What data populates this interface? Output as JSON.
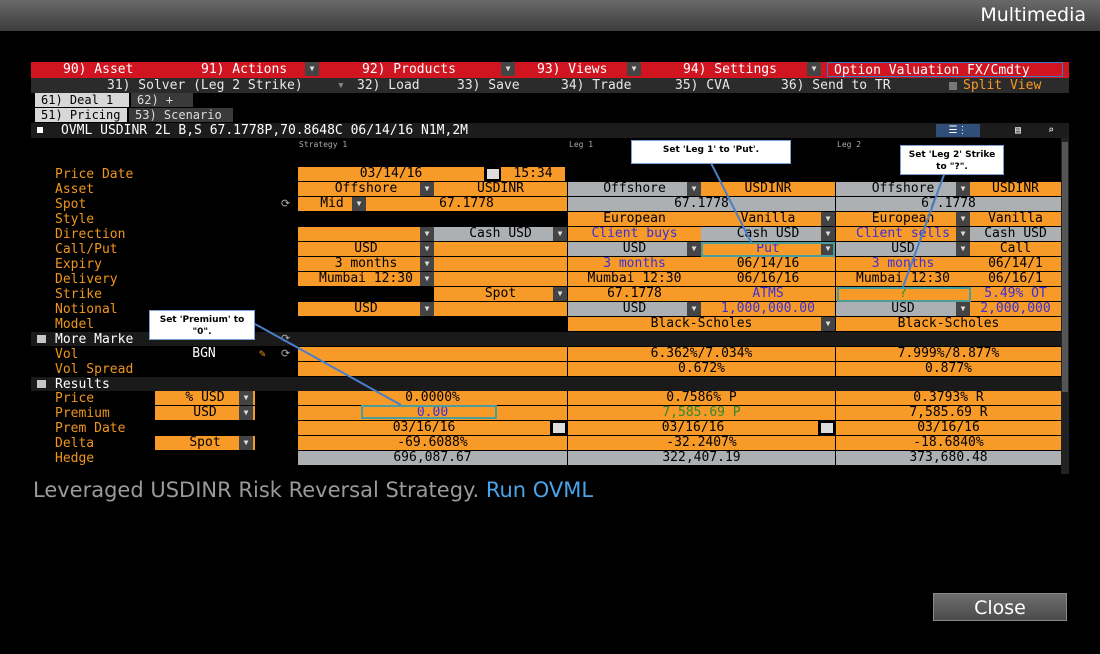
{
  "window": {
    "title": "Multimedia"
  },
  "menubar": {
    "items": [
      {
        "label": "90) Asset"
      },
      {
        "label": "91) Actions"
      },
      {
        "label": "92) Products"
      },
      {
        "label": "93) Views"
      },
      {
        "label": "94) Settings"
      }
    ],
    "function_title": "Option Valuation FX/Cmdty"
  },
  "toolbar": {
    "solver": "31) Solver (Leg 2 Strike)",
    "load": "32) Load",
    "save": "33) Save",
    "trade": "34) Trade",
    "cva": "35) CVA",
    "send": "36) Send to TR",
    "split_view": "Split View"
  },
  "deal_tabs": [
    {
      "label": "61) Deal 1"
    },
    {
      "label": "62) +"
    }
  ],
  "view_tabs": [
    {
      "label": "51) Pricing"
    },
    {
      "label": "53) Scenario"
    }
  ],
  "header": {
    "deal_string": "OVML USDINR 2L B,S 67.1778P,70.8648C 06/14/16 N1M,2M"
  },
  "subheader": {
    "strategy": "Strategy 1",
    "leg1": "Leg 1",
    "leg2": "Leg 2"
  },
  "labels": {
    "price_date": "Price Date",
    "asset": "Asset",
    "spot": "Spot",
    "style": "Style",
    "direction": "Direction",
    "call_put": "Call/Put",
    "expiry": "Expiry",
    "delivery": "Delivery",
    "strike": "Strike",
    "notional": "Notional",
    "model": "Model",
    "more_market": "More Marke",
    "vol": "Vol",
    "vol_spread": "Vol Spread",
    "results": "Results",
    "price": "Price",
    "premium": "Premium",
    "prem_date": "Prem Date",
    "delta": "Delta",
    "hedge": "Hedge"
  },
  "strategy": {
    "price_date": "03/14/16",
    "time": "15:34",
    "asset_type": "Offshore",
    "asset_pair": "USDINR",
    "spot_mode": "Mid",
    "spot": "67.1778",
    "direction": "Cash USD",
    "call_put": "USD",
    "expiry": "3 months",
    "delivery": "Mumbai 12:30",
    "strike_ref": "Spot",
    "notional_ccy": "USD",
    "vol_source": "BGN",
    "price_unit": "% USD",
    "price": "0.0000%",
    "premium_ccy": "USD",
    "premium": "0.00",
    "prem_date": "03/16/16",
    "delta_type": "Spot",
    "delta": "-69.6088%",
    "hedge": "696,087.67"
  },
  "leg1": {
    "asset_type": "Offshore",
    "asset_pair": "USDINR",
    "spot": "67.1778",
    "style": "European",
    "type": "Vanilla",
    "direction": "Client buys",
    "settle": "Cash USD",
    "call_put_ccy": "USD",
    "call_put": "Put",
    "expiry": "3 months",
    "expiry_date": "06/14/16",
    "delivery": "Mumbai 12:30",
    "delivery_date": "06/16/16",
    "strike": "67.1778",
    "strike_mode": "ATMS",
    "notional_ccy": "USD",
    "notional": "1,000,000.00",
    "model": "Black-Scholes",
    "vol": "6.362%/7.034%",
    "vol_spread": "0.672%",
    "price": "0.7586% P",
    "premium": "7,585.69 P",
    "prem_date": "03/16/16",
    "delta": "-32.2407%",
    "hedge": "322,407.19"
  },
  "leg2": {
    "asset_type": "Offshore",
    "asset_pair": "USDINR",
    "spot": "67.1778",
    "style": "European",
    "type": "Vanilla",
    "direction": "Client sells",
    "settle": "Cash USD",
    "call_put_ccy": "USD",
    "call_put": "Call",
    "expiry": "3 months",
    "expiry_date": "06/14/1",
    "delivery": "Mumbai 12:30",
    "delivery_date": "06/16/1",
    "strike": "?",
    "strike_mode": "5.49% OT",
    "notional_ccy": "USD",
    "notional": "2,000,000",
    "model": "Black-Scholes",
    "vol": "7.999%/8.877%",
    "vol_spread": "0.877%",
    "price": "0.3793% R",
    "premium": "7,585.69 R",
    "prem_date": "03/16/16",
    "delta": "-18.6840%",
    "hedge": "373,680.48"
  },
  "callouts": {
    "leg1": "Set 'Leg 1' to 'Put'.",
    "leg2": "Set 'Leg 2' Strike to \"?\".",
    "premium": "Set 'Premium' to \"0\"."
  },
  "caption": {
    "text": "Leveraged USDINR Risk Reversal Strategy. ",
    "link": "Run OVML"
  },
  "close_button": "Close",
  "colors": {
    "accent_orange": "#f79a27",
    "menu_red": "#d01420",
    "link_blue": "#4aa3e8",
    "highlight": "#4a9d9a"
  }
}
